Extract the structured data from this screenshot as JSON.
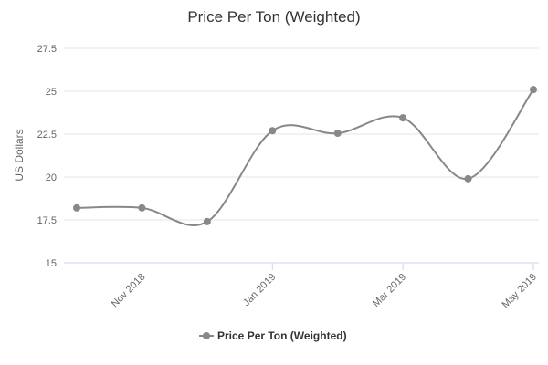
{
  "chart_data": {
    "type": "line",
    "title": "Price Per Ton (Weighted)",
    "y_label": "US Dollars",
    "categories": [
      null,
      "Nov 2018",
      null,
      "Jan 2019",
      null,
      "Mar 2019",
      null,
      "May 2019"
    ],
    "series": [
      {
        "name": "Price Per Ton (Weighted)",
        "color": "#888888",
        "values": [
          18.2,
          18.2,
          17.4,
          22.7,
          22.55,
          23.45,
          19.9,
          25.1
        ]
      }
    ],
    "ylim": [
      15,
      27.5
    ],
    "yticks": [
      15,
      17.5,
      20,
      22.5,
      25,
      27.5
    ],
    "grid": true,
    "smooth": true,
    "legend": "bottom"
  }
}
